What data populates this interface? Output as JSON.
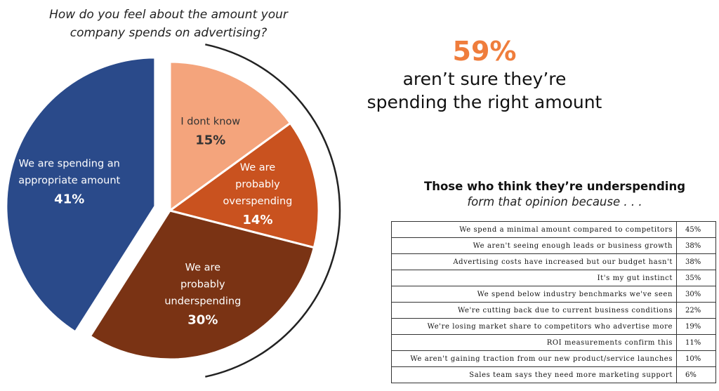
{
  "question": {
    "line1": "How do you feel about the amount your",
    "line2": "company spends on advertising?"
  },
  "chart_data": {
    "type": "pie",
    "slices": [
      {
        "label_lines": [
          "We are spending an",
          "appropriate amount"
        ],
        "value": 41,
        "pct_label": "41%",
        "color": "#2a4a8a",
        "text_color": "#ffffff"
      },
      {
        "label_lines": [
          "I dont know"
        ],
        "value": 15,
        "pct_label": "15%",
        "color": "#f4a47c",
        "text_color": "#333333"
      },
      {
        "label_lines": [
          "We are",
          "probably",
          "overspending"
        ],
        "value": 14,
        "pct_label": "14%",
        "color": "#c9521f",
        "text_color": "#ffffff"
      },
      {
        "label_lines": [
          "We are",
          "probably",
          "underspending"
        ],
        "value": 30,
        "pct_label": "30%",
        "color": "#7a3314",
        "text_color": "#ffffff"
      }
    ],
    "exploded_slice": 0
  },
  "callout": {
    "value": "59%",
    "text": "aren’t sure they’re\nspending the right amount"
  },
  "reasons_table": {
    "title": "Those who think they’re underspending",
    "subtitle": "form that opinion because . . .",
    "rows": [
      {
        "reason": "We spend a minimal amount compared to competitors",
        "pct": "45%"
      },
      {
        "reason": "We aren't seeing enough leads or business growth",
        "pct": "38%"
      },
      {
        "reason": "Advertising costs have increased but our budget hasn't",
        "pct": "38%"
      },
      {
        "reason": "It's my gut instinct",
        "pct": "35%"
      },
      {
        "reason": "We spend below industry benchmarks we've seen",
        "pct": "30%"
      },
      {
        "reason": "We're cutting back due to current business conditions",
        "pct": "22%"
      },
      {
        "reason": "We're losing market share to competitors who advertise more",
        "pct": "19%"
      },
      {
        "reason": "ROI measurements confirm this",
        "pct": "11%"
      },
      {
        "reason": "We aren't gaining traction from our new product/service launches",
        "pct": "10%"
      },
      {
        "reason": "Sales team says they need more marketing support",
        "pct": "6%"
      }
    ]
  }
}
